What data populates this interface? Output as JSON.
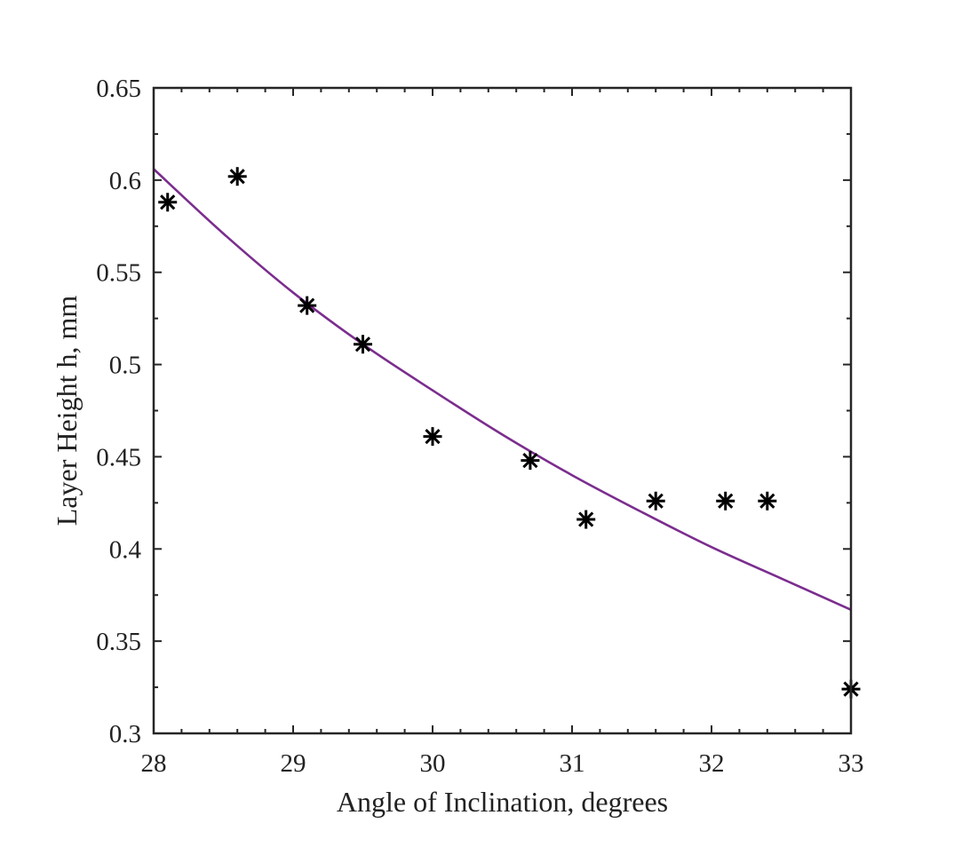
{
  "chart_data": {
    "type": "scatter",
    "title": "",
    "xlabel": "Angle of Inclination,  degrees",
    "ylabel": "Layer Height h, mm",
    "xlim": [
      28,
      33
    ],
    "ylim": [
      0.3,
      0.65
    ],
    "xticks": [
      28,
      29,
      30,
      31,
      32,
      33
    ],
    "xtick_labels": [
      "28",
      "29",
      "30",
      "31",
      "32",
      "33"
    ],
    "yticks": [
      0.3,
      0.35,
      0.4,
      0.45,
      0.5,
      0.55,
      0.6,
      0.65
    ],
    "ytick_labels": [
      "0.3",
      "0.35",
      "0.4",
      "0.45",
      "0.5",
      "0.55",
      "0.6",
      "0.65"
    ],
    "x_minor_step": 0.2,
    "y_minor_step": 0.025,
    "grid": false,
    "legend": "none",
    "series": [
      {
        "kind": "scatter",
        "marker": "asterisk",
        "color": "#000000",
        "x": [
          28.1,
          28.6,
          29.1,
          29.5,
          30.0,
          30.7,
          31.1,
          31.6,
          32.1,
          32.4,
          33.0
        ],
        "y": [
          0.588,
          0.602,
          0.532,
          0.511,
          0.461,
          0.448,
          0.416,
          0.426,
          0.426,
          0.426,
          0.324
        ]
      },
      {
        "kind": "line",
        "color": "#7b2d8e",
        "x": [
          28.0,
          28.5,
          29.0,
          29.5,
          30.0,
          30.5,
          31.0,
          31.5,
          32.0,
          32.5,
          33.0
        ],
        "y": [
          0.606,
          0.571,
          0.539,
          0.511,
          0.486,
          0.462,
          0.44,
          0.42,
          0.401,
          0.384,
          0.367
        ]
      }
    ]
  }
}
